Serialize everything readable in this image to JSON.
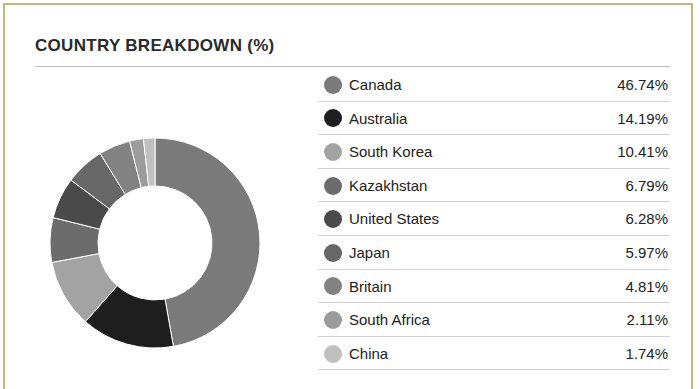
{
  "chart_data": {
    "type": "donut",
    "title": "COUNTRY BREAKDOWN (%)",
    "categories": [
      "Canada",
      "Australia",
      "South Korea",
      "Kazakhstan",
      "United States",
      "Japan",
      "Britain",
      "South Africa",
      "China"
    ],
    "values": [
      46.74,
      14.19,
      10.41,
      6.79,
      6.28,
      5.97,
      4.81,
      2.11,
      1.74
    ],
    "value_labels": [
      "46.74%",
      "14.19%",
      "10.41%",
      "6.79%",
      "6.28%",
      "5.97%",
      "4.81%",
      "2.11%",
      "1.74%"
    ],
    "colors": [
      "#7a7a7a",
      "#1e1e1e",
      "#a3a3a3",
      "#6c6c6c",
      "#4a4a4a",
      "#676767",
      "#828282",
      "#9c9c9c",
      "#c0c0c0"
    ],
    "data_labels": true
  }
}
